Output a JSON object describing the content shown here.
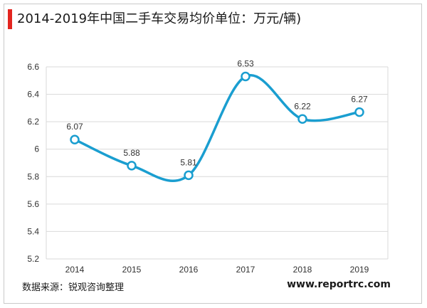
{
  "title": "2014-2019年中国二手车交易均价单位：万元/辆)",
  "source": "数据来源：锐观咨询整理",
  "website": "www.reportrc.com",
  "colors": {
    "accent": "#e3251f",
    "line": "#1a9ed0",
    "grid": "#d9d9d9"
  },
  "chart_data": {
    "type": "line",
    "categories": [
      "2014",
      "2015",
      "2016",
      "2017",
      "2018",
      "2019"
    ],
    "values": [
      6.07,
      5.88,
      5.81,
      6.53,
      6.22,
      6.27
    ],
    "data_labels": [
      "6.07",
      "5.88",
      "5.81",
      "6.53",
      "6.22",
      "6.27"
    ],
    "yticks": [
      "5.2",
      "5.4",
      "5.6",
      "5.8",
      "6",
      "6.2",
      "6.4",
      "6.6"
    ],
    "ylim": [
      5.2,
      6.6
    ],
    "grid": true,
    "smooth": true,
    "marker": "hollow-circle"
  }
}
